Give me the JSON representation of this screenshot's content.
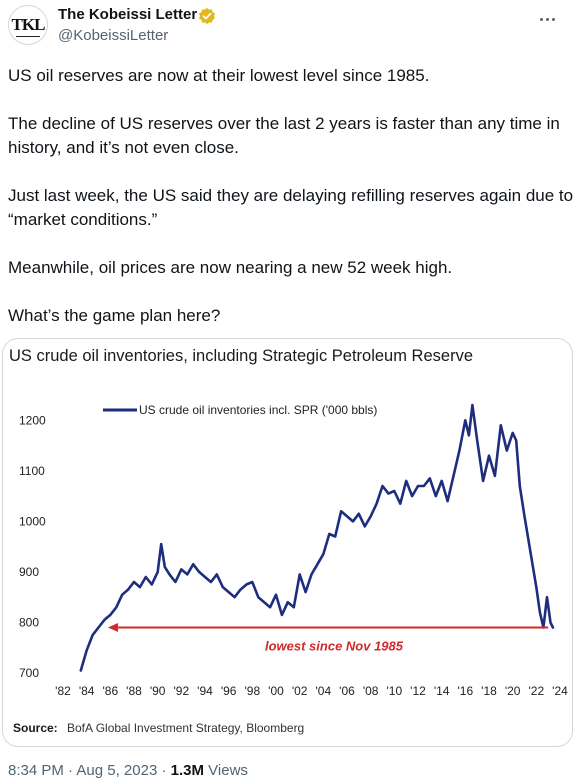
{
  "author": {
    "name": "The Kobeissi Letter",
    "handle": "@KobeissiLetter",
    "avatar_text": "TKL",
    "verified": true,
    "verified_color": "#E2B719"
  },
  "tweet": {
    "paragraphs": [
      "US oil reserves are now at their lowest level since 1985.",
      "The decline of US reserves over the last 2 years is faster than any time in history, and it’s not even close.",
      "Just last week, the US said they are delaying refilling reserves again due to “market conditions.”",
      "Meanwhile, oil prices are now nearing a new 52 week high.",
      "What’s the game plan here?"
    ]
  },
  "meta": {
    "time": "8:34 PM",
    "separator": "·",
    "date": "Aug 5, 2023",
    "views_count": "1.3M",
    "views_label": "Views"
  },
  "chart_data": {
    "type": "line",
    "title": "US crude oil inventories, including Strategic Petroleum Reserve",
    "series": [
      {
        "name": "US crude oil inventories incl. SPR ('000 bbls)",
        "color": "#1F2D7E",
        "x": [
          1983.5,
          1984.0,
          1984.5,
          1985.0,
          1985.5,
          1986.0,
          1986.5,
          1987.0,
          1987.5,
          1988.0,
          1988.5,
          1989.0,
          1989.5,
          1990.0,
          1990.3,
          1990.6,
          1991.0,
          1991.5,
          1992.0,
          1992.5,
          1993.0,
          1993.5,
          1994.0,
          1994.5,
          1995.0,
          1995.5,
          1996.0,
          1996.5,
          1997.0,
          1997.5,
          1998.0,
          1998.5,
          1999.0,
          1999.5,
          2000.0,
          2000.5,
          2001.0,
          2001.5,
          2002.0,
          2002.5,
          2003.0,
          2003.5,
          2004.0,
          2004.5,
          2005.0,
          2005.5,
          2006.0,
          2006.5,
          2007.0,
          2007.5,
          2008.0,
          2008.5,
          2009.0,
          2009.5,
          2010.0,
          2010.5,
          2011.0,
          2011.5,
          2012.0,
          2012.5,
          2013.0,
          2013.5,
          2014.0,
          2014.5,
          2015.0,
          2015.5,
          2016.0,
          2016.3,
          2016.6,
          2017.0,
          2017.5,
          2018.0,
          2018.5,
          2019.0,
          2019.5,
          2020.0,
          2020.3,
          2020.6,
          2021.0,
          2021.5,
          2022.0,
          2022.3,
          2022.6,
          2022.9,
          2023.2,
          2023.4
        ],
        "y": [
          705,
          745,
          775,
          790,
          805,
          815,
          830,
          855,
          865,
          880,
          870,
          890,
          875,
          900,
          955,
          910,
          895,
          880,
          905,
          895,
          915,
          900,
          890,
          880,
          895,
          870,
          860,
          850,
          865,
          875,
          880,
          850,
          840,
          830,
          855,
          815,
          840,
          830,
          895,
          860,
          895,
          915,
          935,
          975,
          970,
          1020,
          1010,
          1000,
          1015,
          990,
          1010,
          1035,
          1070,
          1055,
          1060,
          1035,
          1080,
          1050,
          1070,
          1070,
          1085,
          1050,
          1080,
          1040,
          1090,
          1140,
          1200,
          1170,
          1230,
          1160,
          1080,
          1130,
          1090,
          1190,
          1140,
          1175,
          1160,
          1070,
          1010,
          940,
          870,
          820,
          790,
          850,
          800,
          790
        ]
      }
    ],
    "xlim": [
      1982,
      2024
    ],
    "ylim": [
      700,
      1250
    ],
    "x_ticks": [
      "'82",
      "'84",
      "'86",
      "'88",
      "'90",
      "'92",
      "'94",
      "'96",
      "'98",
      "'00",
      "'02",
      "'04",
      "'06",
      "'08",
      "'10",
      "'12",
      "'14",
      "'16",
      "'18",
      "'20",
      "'22",
      "'24"
    ],
    "y_ticks": [
      700,
      800,
      900,
      1000,
      1100,
      1200
    ],
    "annotation": {
      "text": "lowest since Nov 1985",
      "value": 790,
      "x_from": 1985.8,
      "x_to": 2023.0,
      "color": "#D12A2A"
    },
    "source_label": "Source:",
    "source_text": "BofA Global Investment Strategy, Bloomberg",
    "grid": false,
    "legend": "top-left"
  }
}
